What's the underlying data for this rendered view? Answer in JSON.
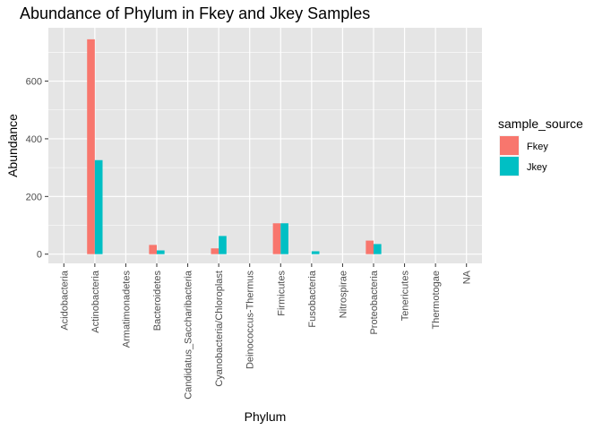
{
  "chart_data": {
    "type": "bar",
    "title": "Abundance of Phylum in Fkey and Jkey Samples",
    "xlabel": "Phylum",
    "ylabel": "Abundance",
    "categories": [
      "Acidobacteria",
      "Actinobacteria",
      "Armatimonadetes",
      "Bacteroidetes",
      "Candidatus_Saccharibacteria",
      "Cyanobacteria/Chloroplast",
      "Deinococcus-Thermus",
      "Firmicutes",
      "Fusobacteria",
      "Nitrospirae",
      "Proteobacteria",
      "Tenericutes",
      "Thermotogae",
      "NA"
    ],
    "series": [
      {
        "name": "Fkey",
        "color": "#F8766D",
        "values": [
          0,
          745,
          0,
          32,
          0,
          20,
          0,
          107,
          0,
          0,
          47,
          0,
          0,
          0
        ]
      },
      {
        "name": "Jkey",
        "color": "#00BFC4",
        "values": [
          0,
          326,
          0,
          13,
          0,
          63,
          0,
          107,
          10,
          0,
          35,
          0,
          0,
          0
        ]
      }
    ],
    "ylim": [
      -32,
      785
    ],
    "yticks": [
      0,
      200,
      400,
      600
    ],
    "legend": {
      "title": "sample_source",
      "placement": "right"
    },
    "grid": true,
    "panel_background": "#E5E5E5",
    "grid_color": "#FFFFFF"
  }
}
